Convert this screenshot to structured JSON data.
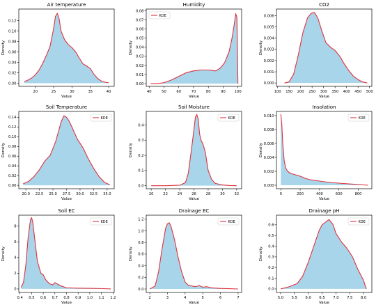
{
  "legend_label": "KDE",
  "colors": {
    "fill": "#a8d5ea",
    "line": "#e0323c",
    "axis": "#000000"
  },
  "chart_data": [
    {
      "type": "area",
      "title": "Air temperature",
      "xlabel": "Value",
      "ylabel": "Density",
      "xlim": [
        15.5,
        41.5
      ],
      "ylim": [
        -0.006,
        0.142
      ],
      "xticks": [
        20,
        25,
        30,
        35,
        40
      ],
      "yticks": [
        0.0,
        0.02,
        0.04,
        0.06,
        0.08,
        0.1,
        0.12
      ],
      "ytick_decimals": 2,
      "legend": false,
      "x": [
        17,
        18,
        19,
        20,
        21,
        22,
        23,
        24,
        25,
        25.5,
        26,
        26.5,
        27,
        28,
        29,
        30,
        31,
        32,
        33,
        34,
        35,
        36,
        37,
        38,
        39,
        40
      ],
      "y": [
        0.003,
        0.006,
        0.01,
        0.016,
        0.025,
        0.038,
        0.053,
        0.07,
        0.105,
        0.128,
        0.134,
        0.123,
        0.1,
        0.083,
        0.074,
        0.068,
        0.06,
        0.048,
        0.037,
        0.033,
        0.028,
        0.017,
        0.009,
        0.004,
        0.002,
        0.001
      ]
    },
    {
      "type": "area",
      "title": "Humidity",
      "xlabel": "Value",
      "ylabel": "Density",
      "xlim": [
        38,
        102.5
      ],
      "ylim": [
        -0.003,
        0.082
      ],
      "xticks": [
        40,
        50,
        60,
        70,
        80,
        90,
        100
      ],
      "yticks": [
        0.0,
        0.01,
        0.02,
        0.03,
        0.04,
        0.05,
        0.06,
        0.07,
        0.08
      ],
      "ytick_decimals": 2,
      "legend": true,
      "x": [
        41,
        45,
        50,
        55,
        60,
        65,
        70,
        75,
        80,
        85,
        88,
        91,
        94,
        96,
        97.5,
        98.5,
        99.3,
        100
      ],
      "y": [
        0.0,
        0.0,
        0.001,
        0.004,
        0.008,
        0.012,
        0.014,
        0.015,
        0.015,
        0.014,
        0.017,
        0.023,
        0.035,
        0.05,
        0.065,
        0.077,
        0.073,
        0.0
      ]
    },
    {
      "type": "area",
      "title": "CO2",
      "xlabel": "Value",
      "ylabel": "Density",
      "xlim": [
        95,
        510
      ],
      "ylim": [
        -0.0003,
        0.0066
      ],
      "xticks": [
        100,
        150,
        200,
        250,
        300,
        350,
        400,
        450,
        500
      ],
      "yticks": [
        0.0,
        0.001,
        0.002,
        0.003,
        0.004,
        0.005,
        0.006
      ],
      "ytick_decimals": 3,
      "legend": false,
      "x": [
        130,
        150,
        170,
        190,
        210,
        230,
        245,
        260,
        275,
        290,
        310,
        330,
        350,
        370,
        390,
        410,
        430,
        450,
        470,
        490
      ],
      "y": [
        0.0,
        0.0001,
        0.0008,
        0.0025,
        0.0045,
        0.0058,
        0.0062,
        0.0063,
        0.0058,
        0.0048,
        0.0036,
        0.0032,
        0.0029,
        0.0024,
        0.0017,
        0.0011,
        0.0006,
        0.0003,
        0.0001,
        0.0
      ]
    },
    {
      "type": "area",
      "title": "Soil Temperature",
      "xlabel": "Value",
      "ylabel": "Density",
      "xlim": [
        18.7,
        36.3
      ],
      "ylim": [
        -0.007,
        0.152
      ],
      "xticks": [
        20.0,
        22.5,
        25.0,
        27.5,
        30.0,
        32.5,
        35.0
      ],
      "yticks": [
        0.0,
        0.02,
        0.04,
        0.06,
        0.08,
        0.1,
        0.12,
        0.14
      ],
      "ytick_decimals": 2,
      "legend": true,
      "x": [
        19.5,
        20.5,
        21.5,
        22.5,
        23.5,
        24.5,
        25.5,
        26.5,
        27,
        27.5,
        28,
        28.5,
        29.5,
        30.5,
        31.5,
        32.5,
        33.5,
        34.5,
        35.5
      ],
      "y": [
        0.003,
        0.008,
        0.018,
        0.032,
        0.05,
        0.062,
        0.09,
        0.13,
        0.143,
        0.14,
        0.132,
        0.12,
        0.095,
        0.078,
        0.055,
        0.035,
        0.018,
        0.006,
        0.001
      ]
    },
    {
      "type": "area",
      "title": "Soil Moisture",
      "xlabel": "Value",
      "ylabel": "Density",
      "xlim": [
        19.3,
        32.7
      ],
      "ylim": [
        -0.02,
        0.49
      ],
      "xticks": [
        20,
        22,
        24,
        26,
        28,
        30,
        32
      ],
      "yticks": [
        0.0,
        0.1,
        0.2,
        0.3,
        0.4
      ],
      "ytick_decimals": 1,
      "legend": true,
      "x": [
        20,
        22,
        24,
        24.8,
        25.2,
        25.6,
        26.0,
        26.2,
        26.4,
        26.6,
        26.8,
        27.0,
        27.3,
        27.6,
        28,
        28.5,
        29,
        30,
        31,
        32
      ],
      "y": [
        0.0,
        0.0,
        0.003,
        0.02,
        0.08,
        0.22,
        0.37,
        0.45,
        0.47,
        0.44,
        0.34,
        0.3,
        0.27,
        0.22,
        0.1,
        0.04,
        0.015,
        0.005,
        0.001,
        0.0
      ]
    },
    {
      "type": "area",
      "title": "Insolation",
      "xlabel": "Value",
      "ylabel": "Density",
      "xlim": [
        -45,
        940
      ],
      "ylim": [
        -0.0005,
        0.0106
      ],
      "xticks": [
        0,
        200,
        400,
        600,
        800
      ],
      "yticks": [
        0.0,
        0.002,
        0.004,
        0.006,
        0.008,
        0.01
      ],
      "ytick_decimals": 3,
      "legend": true,
      "x": [
        0,
        10,
        20,
        35,
        50,
        70,
        100,
        150,
        200,
        250,
        300,
        400,
        500,
        600,
        700,
        800,
        900
      ],
      "y": [
        0.0102,
        0.0088,
        0.006,
        0.0035,
        0.0025,
        0.002,
        0.0017,
        0.0015,
        0.0013,
        0.001,
        0.0008,
        0.0006,
        0.0004,
        0.0003,
        0.0002,
        0.0001,
        0.0
      ]
    },
    {
      "type": "area",
      "title": "Soil EC",
      "xlabel": "Value",
      "ylabel": "Density",
      "xlim": [
        0.39,
        1.21
      ],
      "ylim": [
        -0.45,
        9.4
      ],
      "xticks": [
        0.4,
        0.5,
        0.6,
        0.7,
        0.8,
        0.9,
        1.0,
        1.1,
        1.2
      ],
      "yticks": [
        0,
        2,
        4,
        6,
        8
      ],
      "ytick_decimals": 0,
      "legend": true,
      "x": [
        0.41,
        0.43,
        0.45,
        0.47,
        0.49,
        0.5,
        0.51,
        0.53,
        0.55,
        0.58,
        0.6,
        0.62,
        0.65,
        0.68,
        0.7,
        0.75,
        0.8,
        0.9,
        1.0,
        1.1,
        1.18
      ],
      "y": [
        0.2,
        0.8,
        3.0,
        6.5,
        8.8,
        9.1,
        8.5,
        6.0,
        3.5,
        2.0,
        1.8,
        1.2,
        0.7,
        0.5,
        0.8,
        0.4,
        0.15,
        0.1,
        0.08,
        0.05,
        0.0
      ]
    },
    {
      "type": "area",
      "title": "Drainage EC",
      "xlabel": "Value",
      "ylabel": "Density",
      "xlim": [
        1.8,
        7.2
      ],
      "ylim": [
        -0.06,
        1.27
      ],
      "xticks": [
        2,
        3,
        4,
        5,
        6,
        7
      ],
      "yticks": [
        0.0,
        0.2,
        0.4,
        0.6,
        0.8,
        1.0,
        1.2
      ],
      "ytick_decimals": 1,
      "legend": true,
      "x": [
        2.0,
        2.3,
        2.5,
        2.7,
        2.9,
        3.0,
        3.1,
        3.2,
        3.4,
        3.6,
        3.8,
        4.0,
        4.2,
        4.4,
        4.6,
        4.8,
        5.0,
        5.2,
        5.5,
        6.0,
        6.5,
        7.0
      ],
      "y": [
        0.0,
        0.05,
        0.3,
        0.7,
        1.05,
        1.12,
        1.14,
        1.08,
        0.85,
        0.55,
        0.3,
        0.12,
        0.06,
        0.05,
        0.04,
        0.06,
        0.03,
        0.04,
        0.02,
        0.01,
        0.005,
        0.0
      ]
    },
    {
      "type": "area",
      "title": "Drainage pH",
      "xlabel": "Value",
      "ylabel": "Density",
      "xlim": [
        4.85,
        8.3
      ],
      "ylim": [
        -0.033,
        0.69
      ],
      "xticks": [
        5.0,
        5.5,
        6.0,
        6.5,
        7.0,
        7.5,
        8.0
      ],
      "yticks": [
        0.0,
        0.1,
        0.2,
        0.3,
        0.4,
        0.5,
        0.6
      ],
      "ytick_decimals": 1,
      "legend": true,
      "x": [
        5.0,
        5.3,
        5.6,
        5.8,
        6.0,
        6.2,
        6.4,
        6.5,
        6.6,
        6.75,
        6.9,
        7.0,
        7.2,
        7.4,
        7.6,
        7.8,
        8.0,
        8.1
      ],
      "y": [
        0.0,
        0.02,
        0.05,
        0.12,
        0.25,
        0.4,
        0.55,
        0.6,
        0.62,
        0.65,
        0.6,
        0.52,
        0.44,
        0.38,
        0.3,
        0.18,
        0.08,
        0.0
      ]
    }
  ]
}
